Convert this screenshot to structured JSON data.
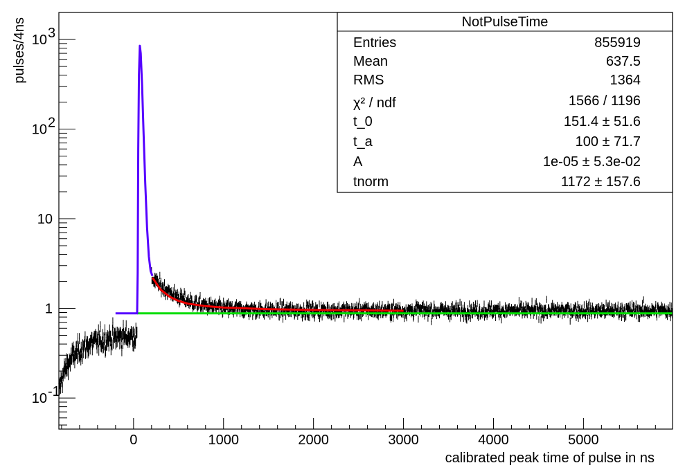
{
  "chart_data": {
    "type": "histogram",
    "xlabel": "calibrated peak time of pulse in ns",
    "ylabel": "pulses/4ns",
    "xlim": [
      -830,
      5990
    ],
    "ylim": [
      0.045,
      2000
    ],
    "yscale": "log",
    "x_ticks": [
      {
        "value": 0,
        "label": "0"
      },
      {
        "value": 1000,
        "label": "1000"
      },
      {
        "value": 2000,
        "label": "2000"
      },
      {
        "value": 3000,
        "label": "3000"
      },
      {
        "value": 4000,
        "label": "4000"
      },
      {
        "value": 5000,
        "label": "5000"
      }
    ],
    "y_ticks": [
      {
        "value": 0.1,
        "base": "10",
        "exp": "-1"
      },
      {
        "value": 1,
        "base": "1",
        "exp": ""
      },
      {
        "value": 10,
        "base": "10",
        "exp": ""
      },
      {
        "value": 100,
        "base": "10",
        "exp": "2"
      },
      {
        "value": 1000,
        "base": "10",
        "exp": "3"
      }
    ],
    "histogram": {
      "name": "NotPulseTime data",
      "color": "#000000",
      "segments": [
        {
          "x_start": -830,
          "x_end": 40,
          "value_start": 0.12,
          "value_end": 0.52,
          "rise_tau": 280,
          "noise": 0.14
        },
        {
          "x_start": 200,
          "x_end": 5990,
          "value_start": 2.2,
          "value_end": 0.95,
          "noise": 0.09
        }
      ]
    },
    "series": [
      {
        "name": "baseline",
        "color": "#00dd00",
        "points": [
          [
            40,
            0.88
          ],
          [
            5990,
            0.88
          ]
        ]
      },
      {
        "name": "full fit",
        "color": "#5500ff",
        "points": [
          [
            -200,
            0.88
          ],
          [
            40,
            0.88
          ],
          [
            46,
            2.5
          ],
          [
            52,
            60
          ],
          [
            60,
            400
          ],
          [
            70,
            850
          ],
          [
            80,
            700
          ],
          [
            95,
            300
          ],
          [
            110,
            100
          ],
          [
            130,
            25
          ],
          [
            150,
            8
          ],
          [
            170,
            3.8
          ],
          [
            190,
            2.6
          ],
          [
            210,
            2.3
          ]
        ]
      },
      {
        "name": "tail fit",
        "color": "#ee0000",
        "points": [
          [
            210,
            2.2
          ],
          [
            300,
            1.62
          ],
          [
            400,
            1.35
          ],
          [
            500,
            1.21
          ],
          [
            600,
            1.13
          ],
          [
            800,
            1.06
          ],
          [
            1000,
            1.02
          ],
          [
            1500,
            0.98
          ],
          [
            2000,
            0.96
          ],
          [
            2500,
            0.95
          ],
          [
            3000,
            0.94
          ]
        ]
      }
    ],
    "stats": {
      "title": "NotPulseTime",
      "rows": [
        {
          "label": "Entries",
          "value": "855919"
        },
        {
          "label": "Mean",
          "value": "637.5"
        },
        {
          "label": "RMS",
          "value": "1364"
        },
        {
          "label": "χ² / ndf",
          "value": "1566 / 1196"
        },
        {
          "label": "t_0",
          "value": "151.4 ±  51.6"
        },
        {
          "label": "t_a",
          "value": "100 ±  71.7"
        },
        {
          "label": "A",
          "value": "1e-05 ±  5.3e-02"
        },
        {
          "label": "tnorm",
          "value": "1172 ±  157.6"
        }
      ]
    }
  }
}
